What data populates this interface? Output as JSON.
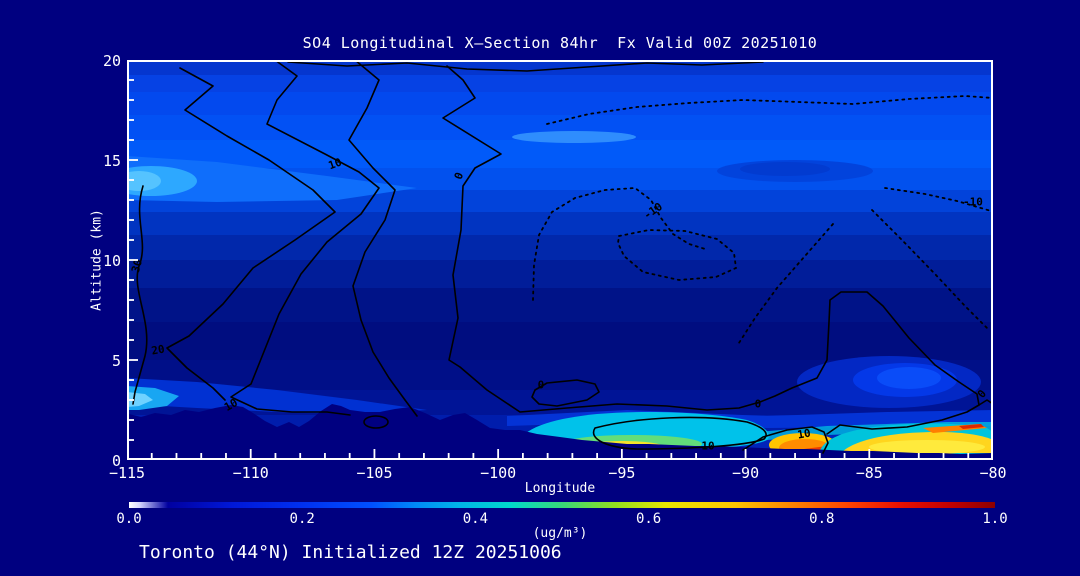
{
  "title": "SO4 Longitudinal X—Section 84hr  Fx Valid 00Z 20251010",
  "caption": "Toronto (44°N) Initialized 12Z 20251006",
  "colors": {
    "background": "#000080",
    "text": "#ffffff",
    "contour_line": "#000000"
  },
  "axes": {
    "x": {
      "label": "Longitude",
      "range": [
        -115,
        -80
      ],
      "tick_values": [
        -115,
        -110,
        -105,
        -100,
        -95,
        -90,
        -85,
        -80
      ],
      "tick_labels": [
        "−115",
        "−110",
        "−105",
        "−100",
        "−95",
        "−90",
        "−85",
        "−80"
      ],
      "minor_tick_step": 1
    },
    "y": {
      "label": "Altitude (km)",
      "range": [
        0,
        20
      ],
      "tick_values": [
        0,
        5,
        10,
        15,
        20
      ],
      "tick_labels": [
        "0",
        "5",
        "10",
        "15",
        "20"
      ],
      "minor_tick_step": 1
    }
  },
  "colorbar": {
    "label": "(ug/m³)",
    "range": [
      0,
      1
    ],
    "tick_values": [
      0.0,
      0.2,
      0.4,
      0.6,
      0.8,
      1.0
    ],
    "tick_labels": [
      "0.0",
      "0.2",
      "0.4",
      "0.6",
      "0.8",
      "1.0"
    ]
  },
  "chart_data": {
    "type": "heatmap",
    "variant": "filled_contour_vertical_cross_section",
    "title": "SO4 Longitudinal X—Section 84hr  Fx Valid 00Z 20251010",
    "xlabel": "Longitude",
    "ylabel": "Altitude (km)",
    "xlim": [
      -115,
      -80
    ],
    "ylim": [
      0,
      20
    ],
    "grid": false,
    "legend": "none",
    "fill_variable": "SO4 concentration",
    "fill_units": "ug/m3",
    "fill_range": [
      0.0,
      1.0
    ],
    "contour_labels": [
      {
        "text": "30",
        "value": 30,
        "lon": -114.6,
        "alt_km": 9.7,
        "angle_deg": -75,
        "line_style": "solid"
      },
      {
        "text": "20",
        "value": 20,
        "lon": -113.75,
        "alt_km": 5.5,
        "angle_deg": -10,
        "line_style": "solid"
      },
      {
        "text": "10",
        "value": 10,
        "lon": -110.8,
        "alt_km": 2.75,
        "angle_deg": -30,
        "line_style": "solid"
      },
      {
        "text": "10",
        "value": 10,
        "lon": -106.59,
        "alt_km": 14.8,
        "angle_deg": -20,
        "line_style": "solid"
      },
      {
        "text": "0",
        "value": 0,
        "lon": -101.58,
        "alt_km": 14.2,
        "angle_deg": -70,
        "line_style": "solid"
      },
      {
        "text": "-10",
        "value": -10,
        "lon": -93.74,
        "alt_km": 12.45,
        "angle_deg": -35,
        "line_style": "dotted"
      },
      {
        "text": "-10",
        "value": -10,
        "lon": -80.81,
        "alt_km": 12.9,
        "angle_deg": 0,
        "line_style": "dotted"
      },
      {
        "text": "0",
        "value": 0,
        "lon": -98.27,
        "alt_km": 3.75,
        "angle_deg": 0,
        "line_style": "solid"
      },
      {
        "text": "0",
        "value": 0,
        "lon": -89.5,
        "alt_km": 2.8,
        "angle_deg": 0,
        "line_style": "solid"
      },
      {
        "text": "10",
        "value": 10,
        "lon": -91.52,
        "alt_km": 0.7,
        "angle_deg": 0,
        "line_style": "solid"
      },
      {
        "text": "10",
        "value": 10,
        "lon": -87.64,
        "alt_km": 1.3,
        "angle_deg": -10,
        "line_style": "solid"
      },
      {
        "text": "0",
        "value": 0,
        "lon": -80.44,
        "alt_km": 3.3,
        "angle_deg": -50,
        "line_style": "solid"
      }
    ],
    "fill_features": [
      {
        "name": "elevated SO4 layer west",
        "lon_range": [
          -115,
          -100
        ],
        "alt_km_range": [
          12,
          17
        ],
        "approx_value_max": 0.4
      },
      {
        "name": "upper-level band east",
        "lon_range": [
          -100,
          -80
        ],
        "alt_km_range": [
          13,
          17
        ],
        "approx_value_max": 0.3
      },
      {
        "name": "near-surface bright patch west edge",
        "lon_range": [
          -115,
          -112.5
        ],
        "alt_km_range": [
          2.4,
          3.8
        ],
        "approx_value_max": 0.4
      },
      {
        "name": "boundary-layer plume central",
        "lon_range": [
          -99,
          -89
        ],
        "alt_km_range": [
          0,
          2
        ],
        "approx_value_max": 0.65
      },
      {
        "name": "surface hotspot",
        "lon_range": [
          -87.8,
          -86.2
        ],
        "alt_km_range": [
          0,
          1
        ],
        "approx_value_max": 0.9
      },
      {
        "name": "boundary-layer plume eastern",
        "lon_range": [
          -86,
          -80
        ],
        "alt_km_range": [
          0,
          1.5
        ],
        "approx_value_max": 0.8
      },
      {
        "name": "terrain silhouette",
        "lon_range": [
          -115,
          -80
        ],
        "alt_km_range": [
          0,
          2.8
        ],
        "approx_value_max": null
      }
    ],
    "background_field_value_range": [
      0.05,
      0.3
    ]
  }
}
